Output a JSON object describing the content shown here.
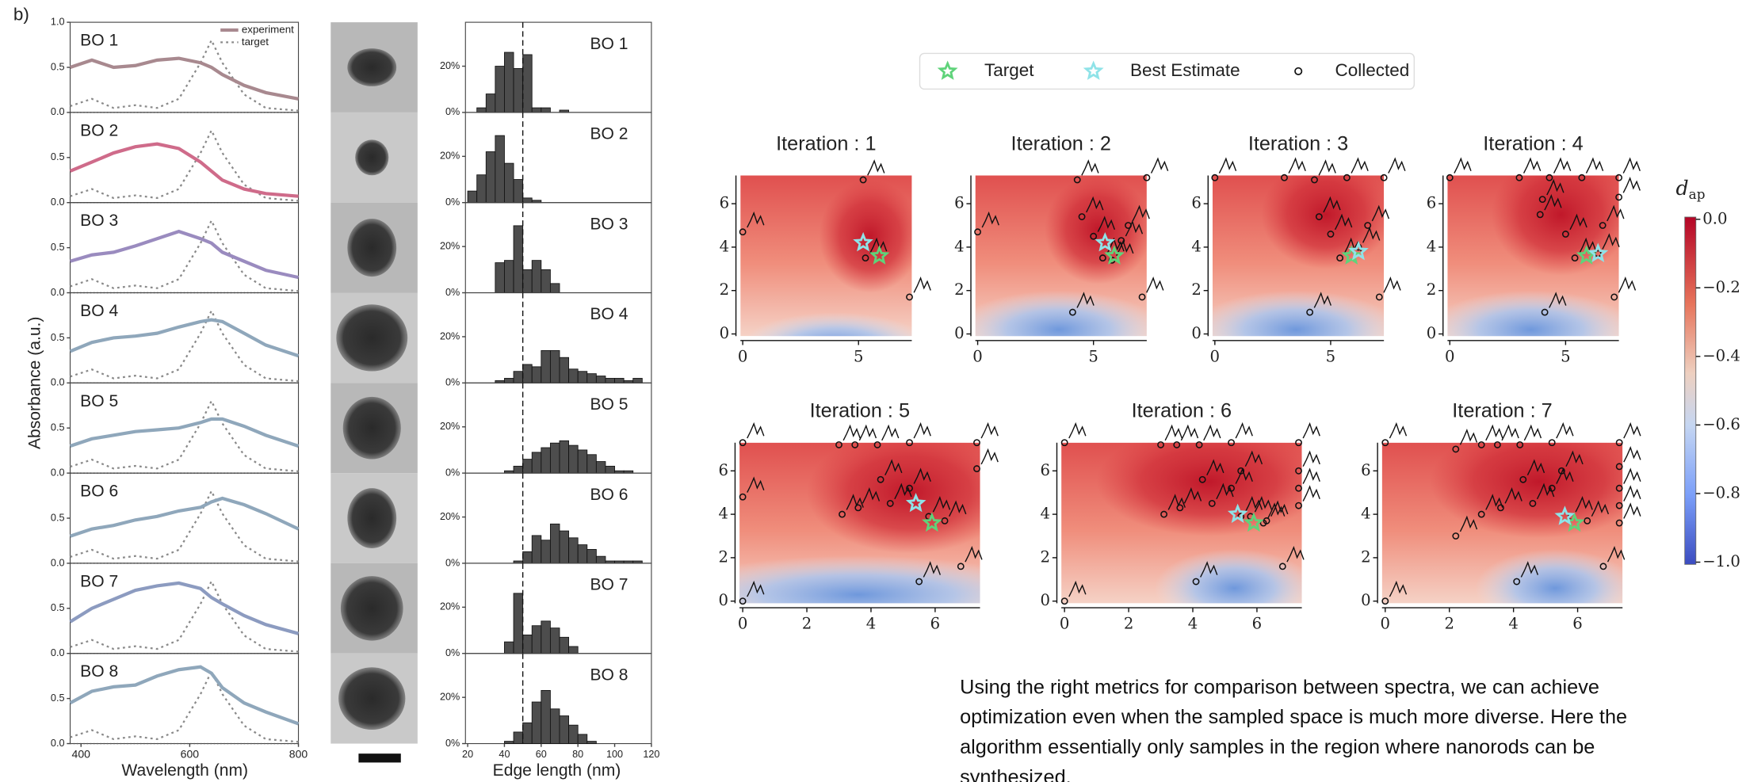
{
  "panel_label": "b)",
  "spectra": {
    "type": "line",
    "xlabel": "Wavelength (nm)",
    "ylabel": "Absorbance (a.u.)",
    "xlim": [
      380,
      800
    ],
    "ylim": [
      0,
      1
    ],
    "xticks": [
      400,
      600,
      800
    ],
    "yticks": [
      {
        "value": 0,
        "label": "0.0"
      },
      {
        "value": 0.5,
        "label": "0.5"
      },
      {
        "value": 1,
        "label": "1.0"
      }
    ],
    "legend_experiment": "experiment",
    "legend_target": "target",
    "target_color": "#8a8a8a",
    "x": [
      380,
      420,
      460,
      500,
      540,
      580,
      620,
      640,
      660,
      700,
      740,
      800
    ],
    "target": [
      0.07,
      0.15,
      0.05,
      0.08,
      0.05,
      0.15,
      0.55,
      0.8,
      0.55,
      0.2,
      0.05,
      0.02
    ],
    "rows": [
      {
        "name": "BO 1",
        "color": "#a8898f",
        "values": [
          0.5,
          0.58,
          0.5,
          0.52,
          0.58,
          0.6,
          0.55,
          0.5,
          0.42,
          0.3,
          0.22,
          0.15
        ]
      },
      {
        "name": "BO 2",
        "color": "#cf6b8a",
        "values": [
          0.35,
          0.45,
          0.55,
          0.62,
          0.65,
          0.6,
          0.45,
          0.35,
          0.25,
          0.15,
          0.1,
          0.07
        ]
      },
      {
        "name": "BO 3",
        "color": "#9a8bbf",
        "values": [
          0.35,
          0.42,
          0.45,
          0.52,
          0.6,
          0.68,
          0.6,
          0.55,
          0.45,
          0.35,
          0.25,
          0.17
        ]
      },
      {
        "name": "BO 4",
        "color": "#8fa7bb",
        "values": [
          0.35,
          0.45,
          0.5,
          0.52,
          0.55,
          0.62,
          0.68,
          0.7,
          0.68,
          0.55,
          0.42,
          0.3
        ]
      },
      {
        "name": "BO 5",
        "color": "#8fa7bb",
        "values": [
          0.3,
          0.38,
          0.42,
          0.46,
          0.48,
          0.5,
          0.56,
          0.6,
          0.6,
          0.52,
          0.42,
          0.3
        ]
      },
      {
        "name": "BO 6",
        "color": "#8fa7bb",
        "values": [
          0.3,
          0.38,
          0.42,
          0.48,
          0.52,
          0.58,
          0.62,
          0.68,
          0.72,
          0.65,
          0.55,
          0.38
        ]
      },
      {
        "name": "BO 7",
        "color": "#8c9bc0",
        "values": [
          0.35,
          0.5,
          0.6,
          0.7,
          0.75,
          0.78,
          0.72,
          0.62,
          0.55,
          0.42,
          0.32,
          0.22
        ]
      },
      {
        "name": "BO 8",
        "color": "#8fa7bb",
        "values": [
          0.45,
          0.58,
          0.63,
          0.65,
          0.75,
          0.82,
          0.85,
          0.78,
          0.62,
          0.45,
          0.35,
          0.22
        ]
      }
    ]
  },
  "histograms": {
    "type": "histogram",
    "xlabel": "Edge length (nm)",
    "xlim": [
      20,
      120
    ],
    "xticks": [
      20,
      40,
      60,
      80,
      100,
      120
    ],
    "ylim": [
      0,
      39
    ],
    "yticks": [
      {
        "value": 0,
        "label": "0%"
      },
      {
        "value": 20,
        "label": "20%"
      }
    ],
    "reference_line": 50,
    "color": "#4d4d4d",
    "bins": [
      20,
      25,
      30,
      35,
      40,
      45,
      50,
      55,
      60,
      65,
      70,
      75,
      80,
      85,
      90,
      95,
      100,
      105,
      110,
      115,
      120
    ],
    "counts": [
      [
        0,
        2,
        8,
        20,
        26,
        19,
        25,
        2,
        2,
        0,
        1,
        0,
        0,
        0,
        0,
        0,
        0,
        0,
        0,
        0
      ],
      [
        5,
        12,
        22,
        29,
        17,
        10,
        2,
        1,
        0,
        0,
        0,
        0,
        0,
        0,
        0,
        0,
        0,
        0,
        0,
        0
      ],
      [
        0,
        0,
        0,
        13,
        14,
        29,
        10,
        14,
        10,
        4,
        0,
        0,
        0,
        0,
        0,
        0,
        0,
        0,
        0,
        0
      ],
      [
        0,
        0,
        0,
        1,
        2,
        5,
        8,
        7,
        14,
        14,
        11,
        6,
        5,
        4,
        3,
        2,
        2,
        1,
        2,
        0
      ],
      [
        0,
        0,
        0,
        0,
        1,
        3,
        6,
        9,
        11,
        13,
        14,
        12,
        10,
        8,
        5,
        3,
        1,
        1,
        0,
        0
      ],
      [
        0,
        0,
        0,
        0,
        0,
        1,
        5,
        12,
        10,
        17,
        14,
        11,
        8,
        6,
        3,
        1,
        1,
        1,
        1,
        0
      ],
      [
        0,
        0,
        0,
        0,
        5,
        26,
        8,
        12,
        14,
        11,
        7,
        3,
        0,
        0,
        0,
        0,
        0,
        0,
        0,
        0
      ],
      [
        0,
        0,
        0,
        0,
        1,
        5,
        9,
        18,
        23,
        15,
        12,
        8,
        4,
        1,
        0,
        0,
        0,
        0,
        0,
        0
      ]
    ]
  },
  "iterations": {
    "type": "scatter",
    "legend_target": "Target",
    "legend_best_estimate": "Best Estimate",
    "legend_collected": "Collected",
    "target_color": "#5fd37a",
    "best_color": "#8fe3e8",
    "target_point": {
      "x": 5.9,
      "y": 3.6
    },
    "plots": [
      {
        "title": "Iteration : 1",
        "xlim": [
          -0.1,
          7.3
        ],
        "ylim": [
          -0.1,
          7.3
        ],
        "xticks": [
          0,
          5
        ],
        "yticks": [
          0,
          2,
          4,
          6
        ],
        "collected": {
          "x": [
            0,
            5.2,
            5.3,
            7.2
          ],
          "y": [
            4.7,
            7.1,
            3.5,
            1.7
          ]
        },
        "best_estimate": {
          "x": 5.2,
          "y": 4.2
        }
      },
      {
        "title": "Iteration : 2",
        "xlim": [
          -0.1,
          7.3
        ],
        "ylim": [
          -0.1,
          7.3
        ],
        "xticks": [
          0,
          5
        ],
        "yticks": [
          0,
          2,
          4,
          6
        ],
        "collected": {
          "x": [
            0,
            4.3,
            7.3,
            4.5,
            5.4,
            6.2,
            4.1,
            7.1,
            6.5,
            5.0,
            5.8
          ],
          "y": [
            4.7,
            7.1,
            7.2,
            5.4,
            3.5,
            4.3,
            1.0,
            1.7,
            5.0,
            4.5,
            3.4
          ]
        },
        "best_estimate": {
          "x": 5.5,
          "y": 4.2
        }
      },
      {
        "title": "Iteration : 3",
        "xlim": [
          -0.1,
          7.3
        ],
        "ylim": [
          -0.1,
          7.3
        ],
        "xticks": [
          0,
          5
        ],
        "yticks": [
          0,
          2,
          4,
          6
        ],
        "collected": {
          "x": [
            0,
            3,
            4.3,
            5.7,
            7.3,
            4.5,
            5.0,
            5.4,
            6.2,
            4.1,
            7.1,
            6.6
          ],
          "y": [
            7.2,
            7.2,
            7.1,
            7.2,
            7.2,
            5.4,
            4.6,
            3.5,
            4.0,
            1.0,
            1.7,
            5.0
          ]
        },
        "best_estimate": {
          "x": 6.2,
          "y": 3.8
        }
      },
      {
        "title": "Iteration : 4",
        "xlim": [
          -0.1,
          7.3
        ],
        "ylim": [
          -0.1,
          7.3
        ],
        "xticks": [
          0,
          5
        ],
        "yticks": [
          0,
          2,
          4,
          6
        ],
        "collected": {
          "x": [
            0,
            3,
            4.3,
            5.7,
            7.3,
            7.3,
            4.0,
            5.0,
            5.4,
            6.4,
            4.1,
            7.1,
            6.6,
            3.9
          ],
          "y": [
            7.2,
            7.2,
            7.2,
            7.2,
            7.2,
            6.3,
            6.2,
            4.6,
            3.5,
            3.7,
            1.0,
            1.7,
            5.0,
            5.5
          ]
        },
        "best_estimate": {
          "x": 6.4,
          "y": 3.7
        }
      },
      {
        "title": "Iteration : 5",
        "xlim": [
          -0.1,
          7.4
        ],
        "ylim": [
          -0.1,
          7.3
        ],
        "xticks": [
          0,
          2,
          4,
          6
        ],
        "yticks": [
          0,
          2,
          4,
          6
        ],
        "collected": {
          "x": [
            0,
            3,
            3.5,
            4.2,
            5.2,
            7.3,
            7.3,
            4.3,
            5.2,
            4.6,
            3.1,
            3.6,
            5.8,
            6.3,
            0,
            0,
            5.5,
            6.8
          ],
          "y": [
            7.3,
            7.2,
            7.2,
            7.2,
            7.3,
            7.3,
            6.1,
            5.6,
            5.2,
            4.5,
            4.0,
            4.3,
            3.9,
            3.7,
            4.8,
            0,
            0.9,
            1.6
          ]
        },
        "best_estimate": {
          "x": 5.4,
          "y": 4.5
        }
      },
      {
        "title": "Iteration : 6",
        "xlim": [
          -0.1,
          7.4
        ],
        "ylim": [
          -0.1,
          7.3
        ],
        "xticks": [
          0,
          2,
          4,
          6
        ],
        "yticks": [
          0,
          2,
          4,
          6
        ],
        "collected": {
          "x": [
            0,
            3,
            3.5,
            4.2,
            5.2,
            7.3,
            7.3,
            7.3,
            7.3,
            4.3,
            5.2,
            4.6,
            3.1,
            3.6,
            5.8,
            6.3,
            5.5,
            6.8,
            4.1,
            5.5,
            6.2,
            0
          ],
          "y": [
            7.3,
            7.2,
            7.2,
            7.2,
            7.3,
            7.3,
            6.0,
            5.2,
            4.4,
            5.6,
            5.2,
            4.5,
            4.0,
            4.3,
            3.9,
            3.7,
            6.0,
            1.6,
            0.9,
            3.9,
            3.6,
            0
          ]
        },
        "best_estimate": {
          "x": 5.4,
          "y": 4.0
        }
      },
      {
        "title": "Iteration : 7",
        "xlim": [
          -0.1,
          7.4
        ],
        "ylim": [
          -0.1,
          7.3
        ],
        "xticks": [
          0,
          2,
          4,
          6
        ],
        "yticks": [
          0,
          2,
          4,
          6
        ],
        "collected": {
          "x": [
            0,
            2.2,
            3,
            3.5,
            4.2,
            5.2,
            7.3,
            7.3,
            7.3,
            7.3,
            7.3,
            4.3,
            5.2,
            4.6,
            3.6,
            5.8,
            6.3,
            5.5,
            6.8,
            4.1,
            2.2,
            3.0,
            0
          ],
          "y": [
            7.3,
            7.0,
            7.2,
            7.2,
            7.2,
            7.3,
            7.3,
            6.2,
            5.2,
            4.4,
            3.6,
            5.6,
            5.2,
            4.5,
            4.3,
            3.9,
            3.7,
            6.0,
            1.6,
            0.9,
            3.0,
            4.0,
            0
          ]
        },
        "best_estimate": {
          "x": 5.6,
          "y": 3.9
        }
      }
    ]
  },
  "colorbar": {
    "label": "d",
    "label_sub": "ap",
    "ylim": [
      -1,
      0
    ],
    "ticks": [
      {
        "value": 0,
        "label": "0.0"
      },
      {
        "value": -0.2,
        "label": "−0.2"
      },
      {
        "value": -0.4,
        "label": "−0.4"
      },
      {
        "value": -0.6,
        "label": "−0.6"
      },
      {
        "value": -0.8,
        "label": "−0.8"
      },
      {
        "value": -1,
        "label": "−1.0"
      }
    ]
  },
  "caption": "Using the right metrics for comparison between spectra, we can achieve optimization even when the sampled space is much more diverse. Here the algorithm essentially only samples in the region where nanorods can be synthesized."
}
